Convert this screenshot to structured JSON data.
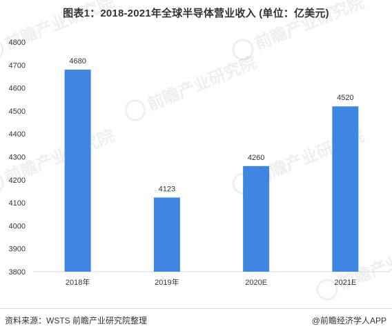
{
  "title": "图表1：2018-2021年全球半导体营业收入 (单位：亿美元)",
  "watermark": "前瞻产业研究院",
  "footer": {
    "source": "资料来源：WSTS 前瞻产业研究院整理",
    "brand": "@前瞻经济学人APP"
  },
  "colors": {
    "bar": "#3f86e0",
    "axis": "#d9d9d9",
    "text": "#333333"
  },
  "chart_data": {
    "type": "bar",
    "title": "图表1：2018-2021年全球半导体营业收入 (单位：亿美元)",
    "categories": [
      "2018年",
      "2019年",
      "2020E",
      "2021E"
    ],
    "values": [
      4680,
      4123,
      4260,
      4520
    ],
    "data_labels": [
      "4680",
      "4123",
      "4260",
      "4520"
    ],
    "ylim": [
      3800,
      4800
    ],
    "yticks": [
      3800,
      3900,
      4000,
      4100,
      4200,
      4300,
      4400,
      4500,
      4600,
      4700,
      4800
    ],
    "grid": false,
    "legend": "none"
  }
}
